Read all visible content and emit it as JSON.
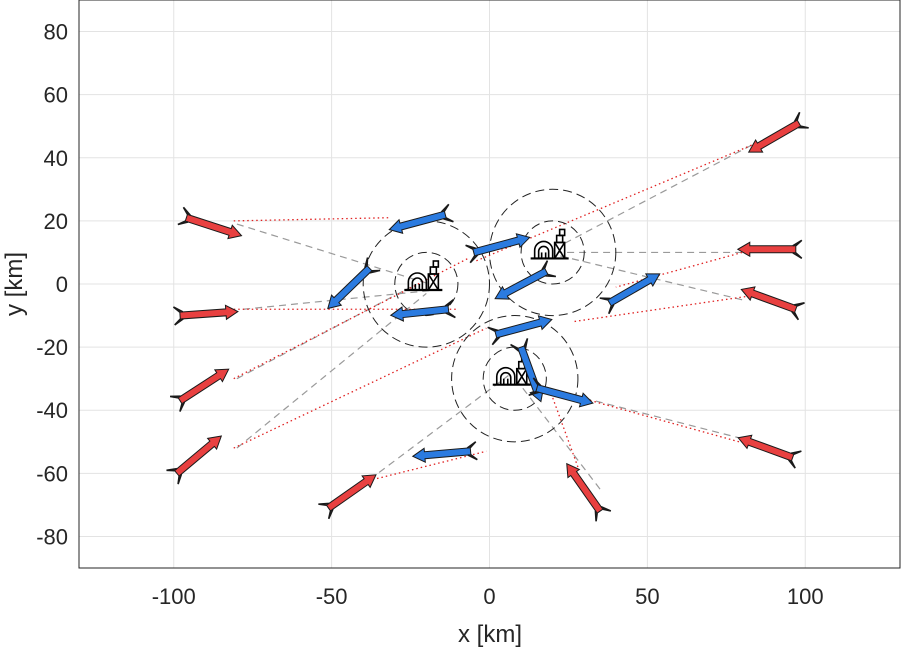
{
  "chart_data": {
    "type": "scatter",
    "xlabel": "x [km]",
    "ylabel": "y [km]",
    "xlim": [
      -130,
      130
    ],
    "ylim": [
      -90,
      90
    ],
    "xticks": [
      -100,
      -50,
      0,
      50,
      100
    ],
    "yticks": [
      -80,
      -60,
      -40,
      -20,
      0,
      20,
      40,
      60,
      80
    ],
    "xtick_labels": [
      "-100",
      "-50",
      "0",
      "50",
      "100"
    ],
    "ytick_labels": [
      "-80",
      "-60",
      "-40",
      "-20",
      "0",
      "20",
      "40",
      "60",
      "80"
    ],
    "grid": true,
    "colors": {
      "red": "#e84040",
      "blue": "#2b7be0",
      "grid": "#e3e3e3",
      "box": "#262626"
    },
    "bases": [
      {
        "x": -20,
        "y": 0,
        "inner_radius": 10,
        "outer_radius": 20
      },
      {
        "x": 20,
        "y": 10,
        "inner_radius": 10,
        "outer_radius": 20
      },
      {
        "x": 8,
        "y": -30,
        "inner_radius": 10,
        "outer_radius": 20
      }
    ],
    "red_agents": [
      {
        "x": -96,
        "y": 21,
        "heading": -18
      },
      {
        "x": -98,
        "y": -10,
        "heading": 4
      },
      {
        "x": -98,
        "y": -37,
        "heading": 33
      },
      {
        "x": -99,
        "y": -60,
        "heading": 40
      },
      {
        "x": -51,
        "y": -71,
        "heading": 35
      },
      {
        "x": 35,
        "y": -72,
        "heading": 125
      },
      {
        "x": 96,
        "y": -55,
        "heading": 160
      },
      {
        "x": 97,
        "y": -8,
        "heading": 160
      },
      {
        "x": 97,
        "y": 11,
        "heading": 180
      },
      {
        "x": 98,
        "y": 51,
        "heading": 210
      }
    ],
    "blue_agents": [
      {
        "x": 38,
        "y": -6,
        "heading": 30
      },
      {
        "x": -13,
        "y": -8,
        "heading": 186
      },
      {
        "x": -38,
        "y": 5,
        "heading": 224
      },
      {
        "x": -5,
        "y": 10,
        "heading": 15
      },
      {
        "x": 18,
        "y": 4,
        "heading": 208
      },
      {
        "x": -14,
        "y": 22,
        "heading": 195
      },
      {
        "x": 2,
        "y": -16,
        "heading": 15
      },
      {
        "x": 10,
        "y": -20,
        "heading": 290
      },
      {
        "x": 15,
        "y": -33,
        "heading": 345
      },
      {
        "x": -6,
        "y": -53,
        "heading": 185
      }
    ],
    "red_target_links": [
      {
        "from": [
          -81,
          20
        ],
        "to": [
          -32,
          21
        ]
      },
      {
        "from": [
          -81,
          -8
        ],
        "to": [
          -10,
          -8
        ]
      },
      {
        "from": [
          -81,
          -30
        ],
        "to": [
          -7,
          8
        ]
      },
      {
        "from": [
          -81,
          -52
        ],
        "to": [
          -1,
          -14
        ]
      },
      {
        "from": [
          -37,
          -62
        ],
        "to": [
          -1,
          -53
        ]
      },
      {
        "from": [
          28,
          -58
        ],
        "to": [
          20,
          -36
        ]
      },
      {
        "from": [
          79,
          -50
        ],
        "to": [
          25,
          -35
        ]
      },
      {
        "from": [
          81,
          -4
        ],
        "to": [
          26,
          -12
        ]
      },
      {
        "from": [
          80,
          10
        ],
        "to": [
          40,
          -1
        ]
      },
      {
        "from": [
          83,
          44
        ],
        "to": [
          -5,
          7
        ]
      }
    ],
    "blue_target_links": [
      {
        "from": [
          -80,
          19
        ],
        "to": [
          -19,
          0
        ]
      },
      {
        "from": [
          -78,
          -8
        ],
        "to": [
          -18,
          -2
        ]
      },
      {
        "from": [
          -80,
          -30
        ],
        "to": [
          -25,
          -1
        ]
      },
      {
        "from": [
          -80,
          -52
        ],
        "to": [
          -20,
          -3
        ]
      },
      {
        "from": [
          -38,
          -62
        ],
        "to": [
          6,
          -29
        ]
      },
      {
        "from": [
          35,
          -65
        ],
        "to": [
          9,
          -31
        ]
      },
      {
        "from": [
          80,
          -49
        ],
        "to": [
          10,
          -31
        ]
      },
      {
        "from": [
          80,
          -5
        ],
        "to": [
          22,
          9
        ]
      },
      {
        "from": [
          80,
          10
        ],
        "to": [
          22,
          10
        ]
      },
      {
        "from": [
          83,
          44
        ],
        "to": [
          24,
          13
        ]
      }
    ]
  }
}
